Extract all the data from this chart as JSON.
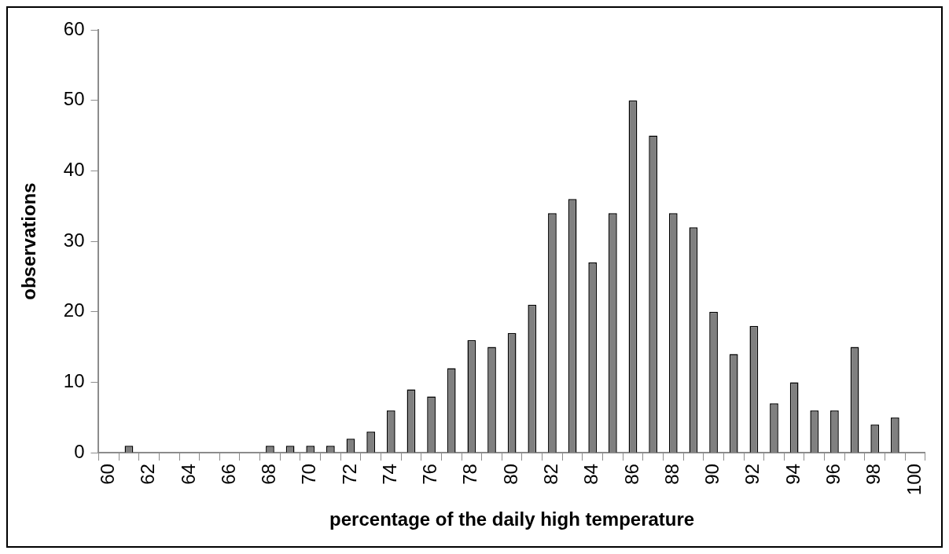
{
  "chart_data": {
    "type": "bar",
    "categories": [
      "60",
      null,
      "62",
      null,
      "64",
      null,
      "66",
      null,
      "68",
      null,
      "70",
      null,
      "72",
      null,
      "74",
      null,
      "76",
      null,
      "78",
      null,
      "80",
      null,
      "82",
      null,
      "84",
      null,
      "86",
      null,
      "88",
      null,
      "90",
      null,
      "92",
      null,
      "94",
      null,
      "96",
      null,
      "98",
      null,
      "100"
    ],
    "values": [
      0,
      1,
      0,
      0,
      0,
      0,
      0,
      0,
      1,
      1,
      1,
      1,
      2,
      3,
      6,
      9,
      8,
      12,
      16,
      15,
      17,
      21,
      34,
      36,
      27,
      34,
      50,
      45,
      34,
      32,
      20,
      14,
      18,
      7,
      10,
      6,
      6,
      15,
      4,
      5,
      0
    ],
    "color": "#808080",
    "xlabel": "percentage of the daily high temperature",
    "ylabel": "observations",
    "ylim": [
      0,
      60
    ],
    "yticks": [
      0,
      10,
      20,
      30,
      40,
      50,
      60
    ],
    "grid": false,
    "legend": false
  }
}
